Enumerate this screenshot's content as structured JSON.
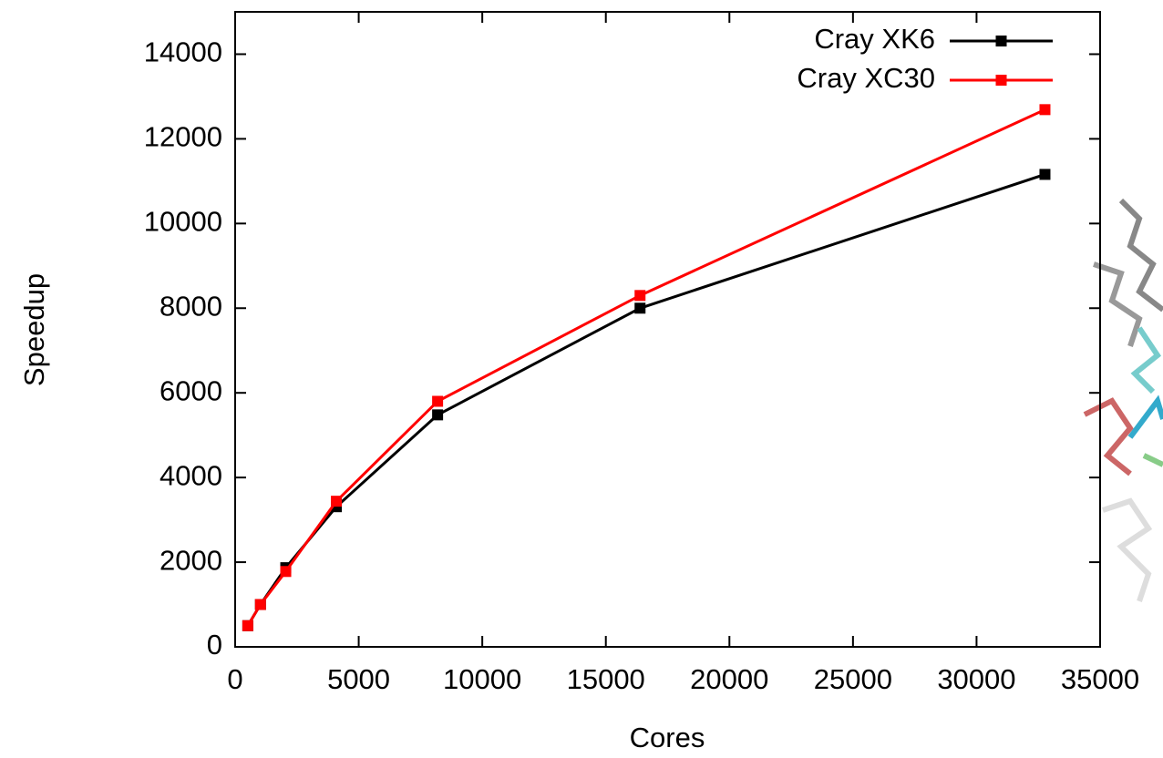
{
  "chart_data": {
    "type": "line",
    "x_label": "Cores",
    "y_label": "Speedup",
    "x": [
      512,
      1024,
      2048,
      4096,
      8192,
      16384,
      32768
    ],
    "series": [
      {
        "name": "Cray XK6",
        "color": "#000000",
        "values": [
          500,
          1000,
          1870,
          3310,
          5480,
          8000,
          11160
        ]
      },
      {
        "name": "Cray XC30",
        "color": "#ff0000",
        "values": [
          500,
          1000,
          1780,
          3440,
          5800,
          8300,
          12690
        ]
      }
    ],
    "xlim": [
      0,
      35000
    ],
    "xticks": [
      0,
      5000,
      10000,
      15000,
      20000,
      25000,
      30000,
      35000
    ],
    "ylim": [
      0,
      15000
    ],
    "yticks": [
      0,
      2000,
      4000,
      6000,
      8000,
      10000,
      12000,
      14000
    ],
    "legend": "top-right"
  }
}
